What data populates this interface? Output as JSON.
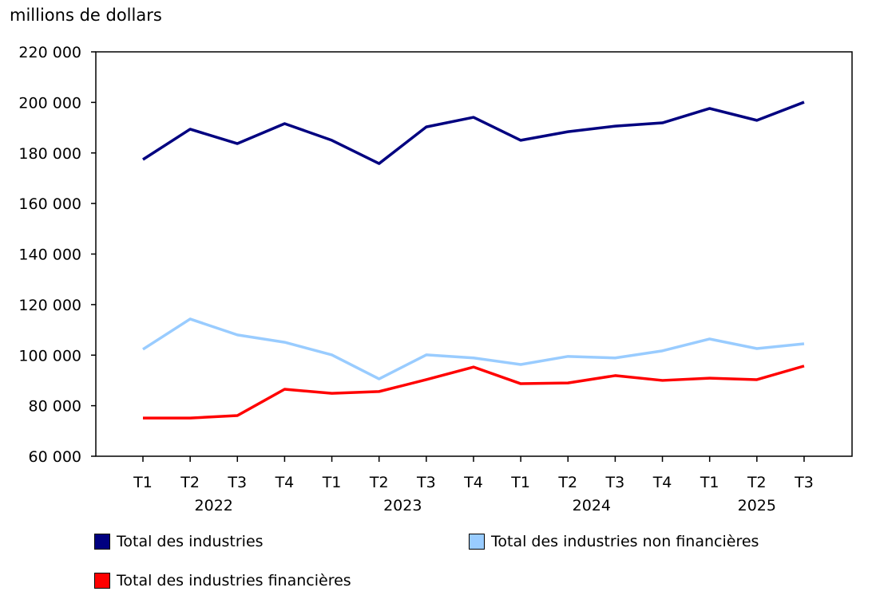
{
  "chart_data": {
    "type": "line",
    "ylabel": "millions de dollars",
    "ylim": [
      60000,
      220000
    ],
    "yticks": [
      60000,
      80000,
      100000,
      120000,
      140000,
      160000,
      180000,
      200000,
      220000
    ],
    "ytick_labels": [
      "60 000",
      "80 000",
      "100 000",
      "120 000",
      "140 000",
      "160 000",
      "180 000",
      "200 000",
      "220 000"
    ],
    "categories": [
      "T1",
      "T2",
      "T3",
      "T4",
      "T1",
      "T2",
      "T3",
      "T4",
      "T1",
      "T2",
      "T3",
      "T4",
      "T1",
      "T2",
      "T3"
    ],
    "year_labels": [
      {
        "label": "2022",
        "center_index": 1.5
      },
      {
        "label": "2023",
        "center_index": 5.5
      },
      {
        "label": "2024",
        "center_index": 9.5
      },
      {
        "label": "2025",
        "center_index": 13
      }
    ],
    "grid": false,
    "legend_position": "bottom",
    "series": [
      {
        "name": "Total des industries",
        "color": "#000080",
        "values": [
          177400,
          189400,
          183700,
          191600,
          185000,
          175800,
          190300,
          194100,
          185000,
          188400,
          190600,
          191900,
          197600,
          192900,
          200100
        ]
      },
      {
        "name": "Total des industries non financières",
        "color": "#99ccff",
        "values": [
          102300,
          114300,
          108000,
          105100,
          100100,
          90600,
          100100,
          98900,
          96300,
          99500,
          98900,
          101700,
          106400,
          102600,
          104500
        ]
      },
      {
        "name": "Total des industries financières",
        "color": "#ff0000",
        "values": [
          75100,
          75100,
          76100,
          86500,
          84900,
          85600,
          90300,
          95300,
          88700,
          89000,
          91900,
          90000,
          90900,
          90300,
          95700
        ]
      }
    ]
  }
}
